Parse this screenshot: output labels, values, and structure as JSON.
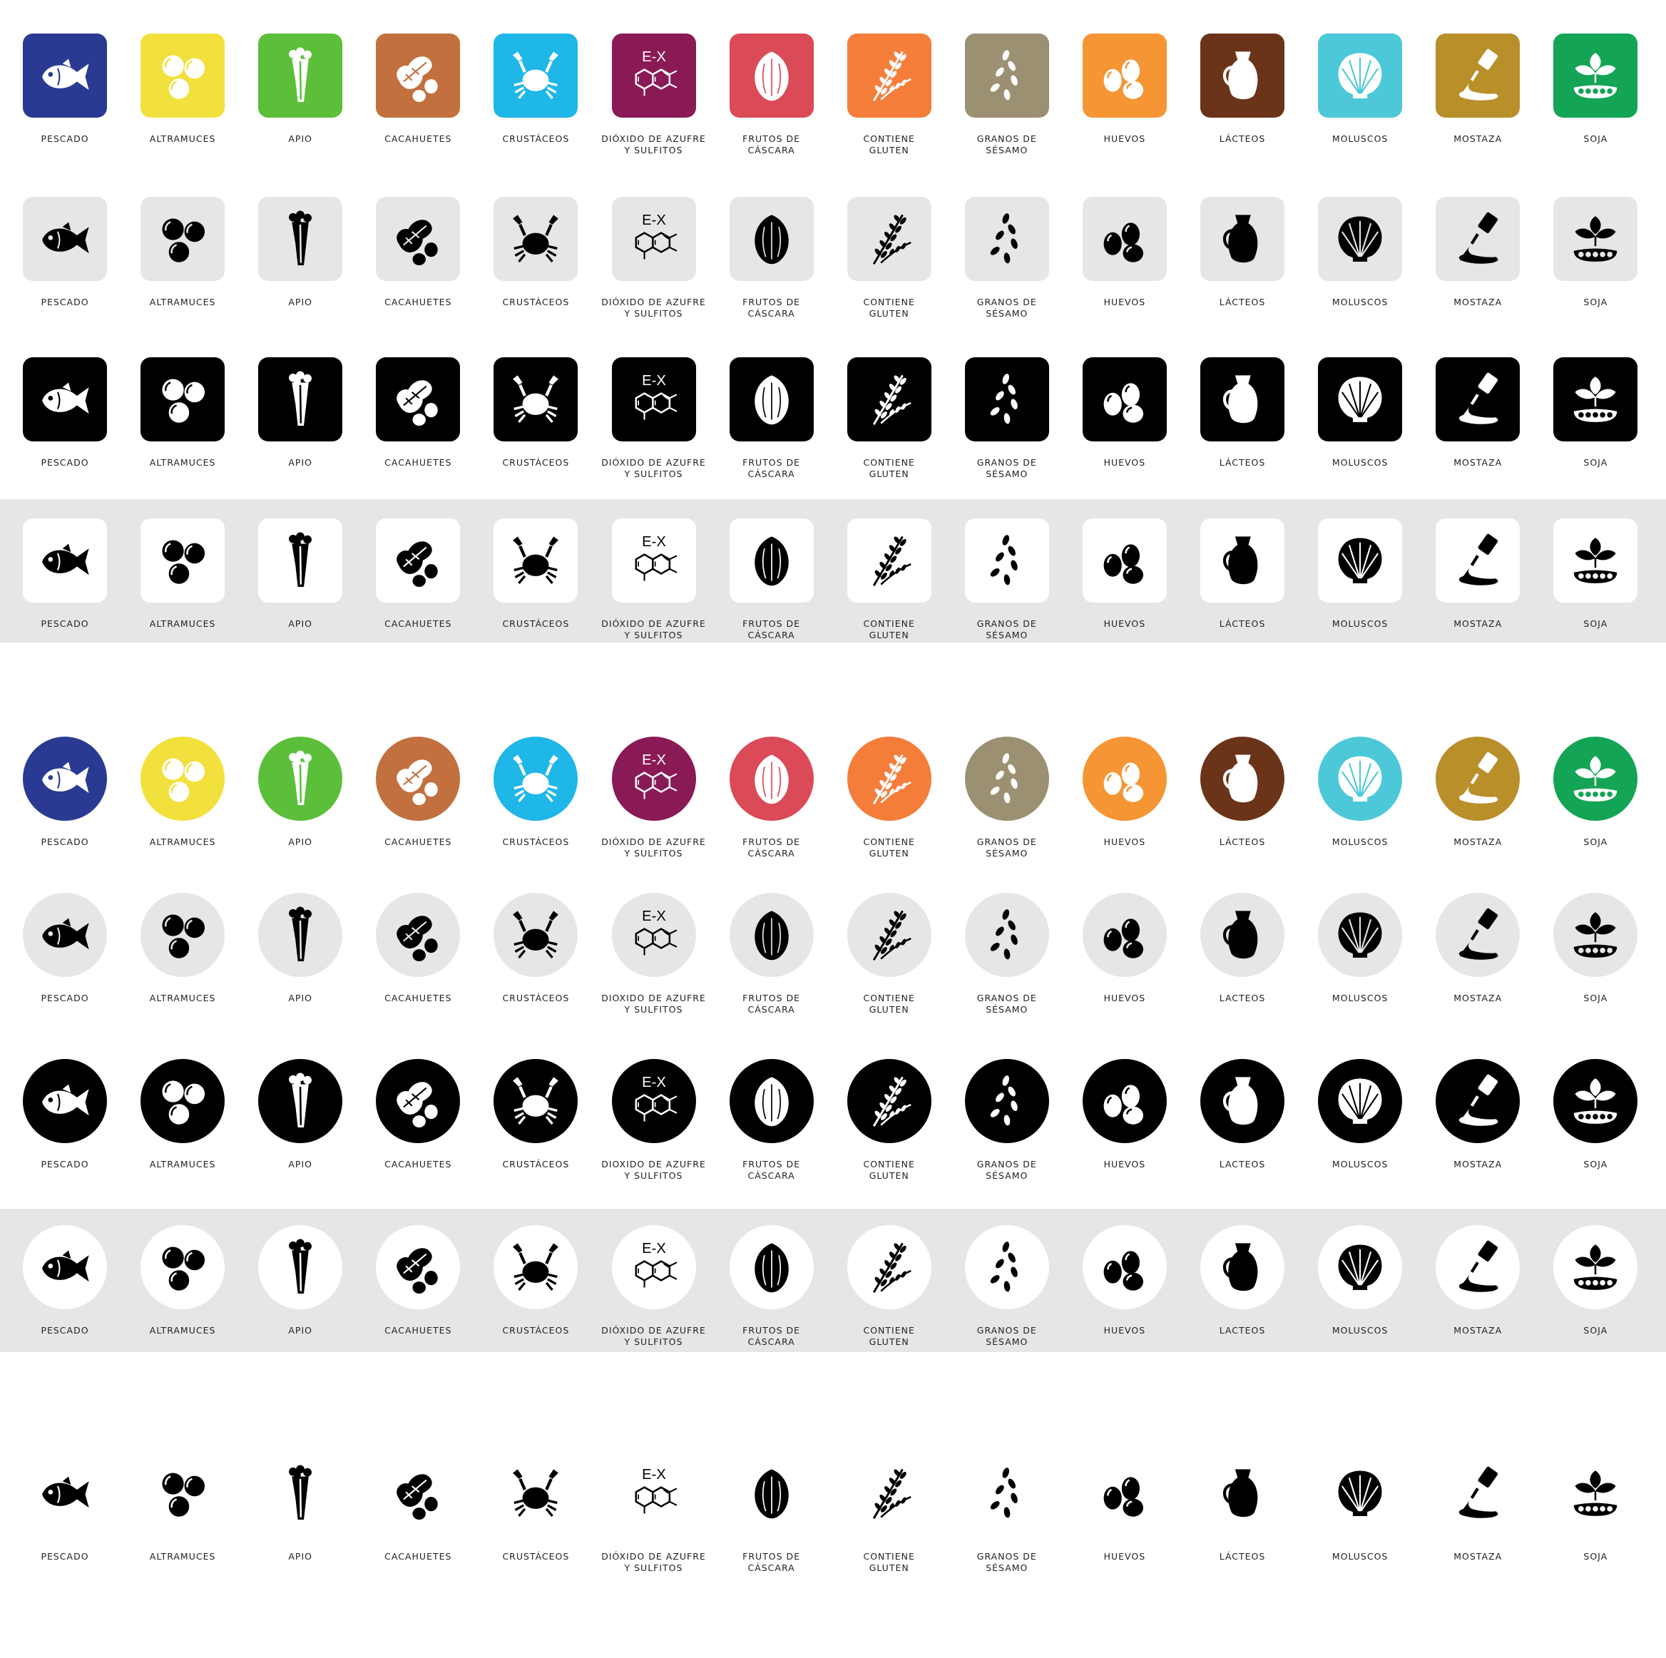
{
  "colors": {
    "pescado": "#2a3a93",
    "altramuces": "#f2e13c",
    "apio": "#5bbf3a",
    "cacahuetes": "#c2703e",
    "crustaceos": "#1fb6e8",
    "dioxido": "#8a1a56",
    "frutos": "#db4a57",
    "gluten": "#f47d3a",
    "sesamo": "#9b9071",
    "huevos": "#f59534",
    "lacteos": "#6b3419",
    "moluscos": "#4dc8d8",
    "mostaza": "#b98f2a",
    "soja": "#14a455",
    "light_gray": "#e6e6e6",
    "black": "#000000",
    "white": "#ffffff"
  },
  "allergens": [
    {
      "key": "pescado",
      "icon": "fish-icon",
      "label": "PESCADO"
    },
    {
      "key": "altramuces",
      "icon": "lupin-icon",
      "label": "ALTRAMUCES"
    },
    {
      "key": "apio",
      "icon": "celery-icon",
      "label": "APIO"
    },
    {
      "key": "cacahuetes",
      "icon": "peanut-icon",
      "label": "CACAHUETES"
    },
    {
      "key": "crustaceos",
      "icon": "crab-icon",
      "label": "CRUSTÁCEOS"
    },
    {
      "key": "dioxido",
      "icon": "sulphite-molecule-icon",
      "label": "DIÓXIDO DE AZUFRE\nY SULFITOS",
      "ex_text": "E-X"
    },
    {
      "key": "frutos",
      "icon": "walnut-icon",
      "label": "FRUTOS DE\nCÁSCARA"
    },
    {
      "key": "gluten",
      "icon": "wheat-icon",
      "label": "CONTIENE\nGLUTEN"
    },
    {
      "key": "sesamo",
      "icon": "sesame-seeds-icon",
      "label": "GRANOS DE\nSÉSAMO"
    },
    {
      "key": "huevos",
      "icon": "eggs-icon",
      "label": "HUEVOS"
    },
    {
      "key": "lacteos",
      "icon": "milk-jug-icon",
      "label": "LÁCTEOS"
    },
    {
      "key": "moluscos",
      "icon": "shell-icon",
      "label": "MOLUSCOS"
    },
    {
      "key": "mostaza",
      "icon": "mustard-bottle-icon",
      "label": "MOSTAZA"
    },
    {
      "key": "soja",
      "icon": "soy-plant-icon",
      "label": "SOJA"
    }
  ],
  "variants": [
    {
      "name": "square-colored",
      "shape": "square",
      "bg": "color",
      "fg": "#ffffff",
      "band": false,
      "labels": {}
    },
    {
      "name": "square-gray",
      "shape": "square",
      "bg": "#e6e6e6",
      "fg": "#000000",
      "band": false,
      "labels": {}
    },
    {
      "name": "square-black",
      "shape": "square",
      "bg": "#000000",
      "fg": "#ffffff",
      "band": false,
      "labels": {}
    },
    {
      "name": "square-white",
      "shape": "square",
      "bg": "#ffffff",
      "fg": "#000000",
      "band": true,
      "labels": {}
    },
    {
      "name": "circle-colored",
      "shape": "circle",
      "bg": "color",
      "fg": "#ffffff",
      "band": false,
      "labels": {}
    },
    {
      "name": "circle-gray",
      "shape": "circle",
      "bg": "#e6e6e6",
      "fg": "#000000",
      "band": false,
      "labels": {
        "dioxido": "DIOXIDO DE AZUFRE\nY SULFITOS",
        "lacteos": "LACTEOS"
      }
    },
    {
      "name": "circle-black",
      "shape": "circle",
      "bg": "#000000",
      "fg": "#ffffff",
      "band": false,
      "labels": {
        "dioxido": "DIOXIDO DE AZUFRE\nY SULFITOS",
        "lacteos": "LACTEOS"
      }
    },
    {
      "name": "circle-white",
      "shape": "circle",
      "bg": "#ffffff",
      "fg": "#000000",
      "band": true,
      "labels": {
        "lacteos": "LACTEOS"
      }
    },
    {
      "name": "plain-icons",
      "shape": "none",
      "bg": "transparent",
      "fg": "#000000",
      "band": false,
      "labels": {}
    }
  ]
}
